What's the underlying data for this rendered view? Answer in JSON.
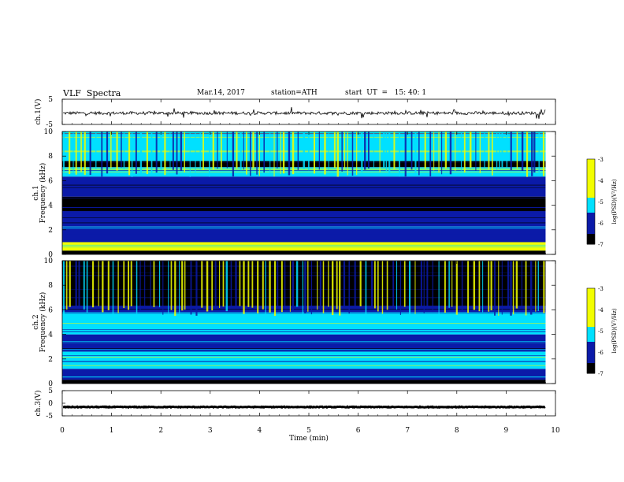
{
  "header": {
    "title": "VLF  Spectra",
    "date": "Mar.14, 2017",
    "station": "station=ATH",
    "start": "start  UT  =   15: 40: 1"
  },
  "colors": {
    "background": "#ffffff",
    "axis": "#000000",
    "spec_min": "#000000",
    "spec_low": "#0b1aa8",
    "spec_mid": "#00e0ff",
    "spec_high": "#f2ff00",
    "spec_max": "#ff2020"
  },
  "chart_data": [
    {
      "id": "ch1_waveform",
      "type": "line",
      "ylabel": "ch.1(V)",
      "ylim": [
        -5,
        5
      ],
      "yticks": [
        "5",
        "-5"
      ],
      "xlim": [
        0,
        10
      ],
      "description_of_signal": "noisy waveform near -0.5 V with frequent short spikes",
      "baseline": -0.5,
      "noise_amplitude": 0.6
    },
    {
      "id": "ch1_spectrogram",
      "type": "heatmap",
      "ylabel": "ch.1",
      "ylabel2": "Frequency  (kHz)",
      "ylim": [
        0,
        10
      ],
      "yticks": [
        "0",
        "2",
        "4",
        "6",
        "8",
        "10"
      ],
      "xlim": [
        0,
        10
      ],
      "colorbar": {
        "label": "log(PSD)(V²/Hz)",
        "range": [
          -7,
          -3
        ],
        "ticks": [
          "-3",
          "-4",
          "-5",
          "-6",
          "-7"
        ]
      },
      "bands_khz": [
        {
          "from": 0.0,
          "to": 0.3,
          "level": -7
        },
        {
          "from": 0.3,
          "to": 1.0,
          "level": -4.6
        },
        {
          "from": 1.0,
          "to": 2.3,
          "level": -5.8
        },
        {
          "from": 2.3,
          "to": 3.5,
          "level": -6.3
        },
        {
          "from": 3.5,
          "to": 4.7,
          "level": -6.8
        },
        {
          "from": 4.7,
          "to": 6.3,
          "level": -6.1
        },
        {
          "from": 6.3,
          "to": 7.1,
          "level": -5.0
        },
        {
          "from": 7.1,
          "to": 7.6,
          "level": -6.9
        },
        {
          "from": 7.6,
          "to": 10.0,
          "level": -5.3
        }
      ]
    },
    {
      "id": "ch2_spectrogram",
      "type": "heatmap",
      "ylabel": "ch.2",
      "ylabel2": "Frequency  (kHz)",
      "ylim": [
        0,
        10
      ],
      "yticks": [
        "0",
        "2",
        "4",
        "6",
        "8",
        "10"
      ],
      "xlim": [
        0,
        10
      ],
      "colorbar": {
        "label": "log(PSD)(V²/Hz)",
        "range": [
          -7,
          -3
        ],
        "ticks": [
          "-3",
          "-4",
          "-5",
          "-6",
          "-7"
        ]
      },
      "bands_khz": [
        {
          "from": 0.0,
          "to": 0.3,
          "level": -7
        },
        {
          "from": 0.3,
          "to": 1.2,
          "level": -5.7
        },
        {
          "from": 1.2,
          "to": 2.6,
          "level": -5.2
        },
        {
          "from": 2.6,
          "to": 4.0,
          "level": -5.9
        },
        {
          "from": 4.0,
          "to": 5.8,
          "level": -5.4
        },
        {
          "from": 5.8,
          "to": 6.3,
          "level": -6.2
        },
        {
          "from": 6.3,
          "to": 10.0,
          "level": -6.8
        }
      ]
    },
    {
      "id": "ch3_waveform",
      "type": "line",
      "ylabel": "ch.3(V)",
      "ylim": [
        -5,
        5
      ],
      "yticks": [
        "5",
        "0",
        "-5"
      ],
      "xlim": [
        0,
        10
      ],
      "description_of_signal": "flat thick trace near -1.5 V",
      "baseline": -1.5,
      "noise_amplitude": 0.15
    }
  ],
  "xaxis": {
    "label": "Time  (min)",
    "ticks": [
      "0",
      "1",
      "2",
      "3",
      "4",
      "5",
      "6",
      "7",
      "8",
      "9",
      "10"
    ],
    "data_end_min": 9.8
  }
}
